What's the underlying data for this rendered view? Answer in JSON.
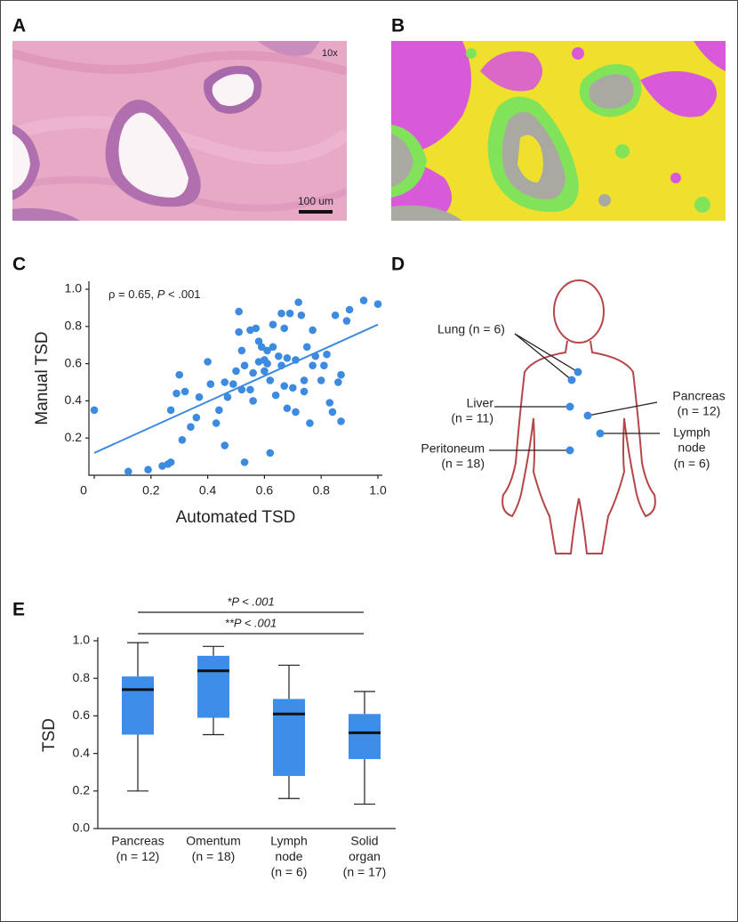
{
  "panels": {
    "a": "A",
    "b": "B",
    "c": "C",
    "d": "D",
    "e": "E"
  },
  "image_a": {
    "magnification": "10x",
    "scale_bar": "100 um"
  },
  "diagram": {
    "sites": [
      {
        "label": [
          "Lung (n = 6)"
        ]
      },
      {
        "label": [
          "Liver",
          "(n = 11)"
        ]
      },
      {
        "label": [
          "Peritoneum",
          "(n = 18)"
        ]
      },
      {
        "label": [
          "Pancreas",
          "(n = 12)"
        ]
      },
      {
        "label": [
          "Lymph",
          "node",
          "(n = 6)"
        ]
      }
    ]
  },
  "chart_data": [
    {
      "type": "scatter",
      "color": "#3d8be0",
      "xlabel": "Automated TSD",
      "ylabel": "Manual TSD",
      "annotation": [
        "ρ = 0.65, ",
        "P",
        " < .001"
      ],
      "xlim": [
        0,
        1
      ],
      "ylim": [
        0,
        1
      ],
      "xticks": [
        0,
        0.2,
        0.4,
        0.6,
        0.8,
        {
          "value": 1,
          "label": "1.0"
        }
      ],
      "yticks": [
        0.2,
        0.4,
        0.6,
        0.8,
        {
          "value": 1,
          "label": "1.0"
        }
      ],
      "x": [
        0.0,
        0.12,
        0.19,
        0.24,
        0.26,
        0.27,
        0.27,
        0.29,
        0.3,
        0.31,
        0.32,
        0.34,
        0.36,
        0.37,
        0.4,
        0.41,
        0.43,
        0.44,
        0.46,
        0.46,
        0.47,
        0.49,
        0.5,
        0.51,
        0.51,
        0.52,
        0.52,
        0.53,
        0.53,
        0.55,
        0.55,
        0.56,
        0.56,
        0.57,
        0.58,
        0.58,
        0.59,
        0.6,
        0.6,
        0.61,
        0.61,
        0.62,
        0.62,
        0.63,
        0.63,
        0.64,
        0.65,
        0.66,
        0.66,
        0.67,
        0.67,
        0.68,
        0.68,
        0.69,
        0.7,
        0.71,
        0.71,
        0.72,
        0.73,
        0.74,
        0.74,
        0.75,
        0.76,
        0.77,
        0.77,
        0.78,
        0.8,
        0.81,
        0.82,
        0.83,
        0.84,
        0.85,
        0.86,
        0.87,
        0.87,
        0.89,
        0.9,
        0.95,
        1.0
      ],
      "values": [
        0.35,
        0.02,
        0.03,
        0.05,
        0.06,
        0.07,
        0.35,
        0.44,
        0.54,
        0.19,
        0.45,
        0.26,
        0.31,
        0.42,
        0.61,
        0.49,
        0.28,
        0.35,
        0.16,
        0.5,
        0.42,
        0.49,
        0.56,
        0.88,
        0.77,
        0.67,
        0.46,
        0.07,
        0.59,
        0.46,
        0.78,
        0.55,
        0.4,
        0.79,
        0.72,
        0.61,
        0.69,
        0.62,
        0.56,
        0.67,
        0.6,
        0.12,
        0.51,
        0.69,
        0.81,
        0.43,
        0.64,
        0.59,
        0.87,
        0.48,
        0.79,
        0.63,
        0.36,
        0.87,
        0.47,
        0.34,
        0.62,
        0.93,
        0.86,
        0.45,
        0.51,
        0.69,
        0.28,
        0.59,
        0.78,
        0.64,
        0.51,
        0.59,
        0.65,
        0.39,
        0.34,
        0.86,
        0.5,
        0.54,
        0.29,
        0.83,
        0.89,
        0.94,
        0.92
      ],
      "trend_line": {
        "x": [
          0,
          1
        ],
        "values": [
          0.12,
          0.81
        ]
      }
    },
    {
      "type": "box",
      "color": "#3d8ee8",
      "ylabel": "TSD",
      "ylim": [
        0,
        1
      ],
      "yticks": [
        {
          "value": 0,
          "label": "0.0"
        },
        0.2,
        0.4,
        0.6,
        0.8,
        {
          "value": 1,
          "label": "1.0"
        }
      ],
      "categories": [
        [
          "Pancreas",
          "(n = 12)"
        ],
        [
          "Omentum",
          "(n = 18)"
        ],
        [
          "Lymph",
          "node",
          "(n = 6)"
        ],
        [
          "Solid",
          "organ",
          "(n = 17)"
        ]
      ],
      "whisker_low": [
        0.2,
        0.5,
        0.16,
        0.13
      ],
      "q1": [
        0.5,
        0.59,
        0.28,
        0.37
      ],
      "median": [
        0.74,
        0.84,
        0.61,
        0.51
      ],
      "q3": [
        0.81,
        0.92,
        0.69,
        0.61
      ],
      "whisker_high": [
        0.99,
        0.97,
        0.87,
        0.73
      ],
      "annotations": [
        "*P < .001",
        "**P < .001"
      ]
    }
  ]
}
